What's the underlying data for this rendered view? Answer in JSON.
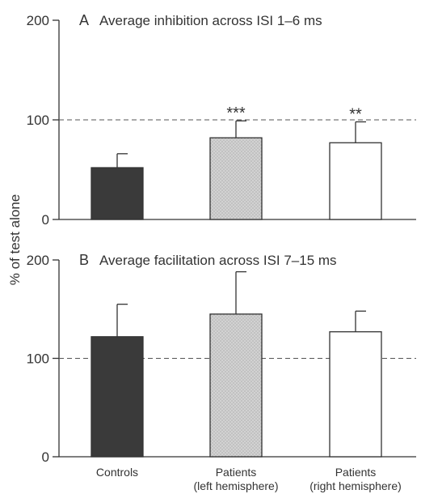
{
  "ylabel": "% of test alone",
  "categories": [
    "Controls",
    "Patients\n(left hemisphere)",
    "Patients\n(right hemisphere)"
  ],
  "colors": {
    "controls": "#3a3a3a",
    "left": "#d2d2d2",
    "right": "#ffffff",
    "stroke": "#333333",
    "reference": "#555555"
  },
  "chart_data": [
    {
      "panel": "A",
      "type": "bar",
      "title": "Average inhibition across ISI 1–6 ms",
      "categories": [
        "Controls",
        "Patients (left hemisphere)",
        "Patients (right hemisphere)"
      ],
      "values": [
        52,
        82,
        77
      ],
      "errors": [
        14,
        17,
        21
      ],
      "significance": [
        "",
        "***",
        "**"
      ],
      "reference_line": 100,
      "yticks": [
        "0",
        "100",
        "200"
      ],
      "ylim": [
        0,
        200
      ],
      "ylabel": "% of test alone"
    },
    {
      "panel": "B",
      "type": "bar",
      "title": "Average facilitation across ISI 7–15 ms",
      "categories": [
        "Controls",
        "Patients (left hemisphere)",
        "Patients (right hemisphere)"
      ],
      "values": [
        122,
        145,
        127
      ],
      "errors": [
        33,
        43,
        21
      ],
      "significance": [
        "",
        "",
        ""
      ],
      "reference_line": 100,
      "yticks": [
        "0",
        "100",
        "200"
      ],
      "ylim": [
        0,
        200
      ],
      "ylabel": "% of test alone"
    }
  ]
}
